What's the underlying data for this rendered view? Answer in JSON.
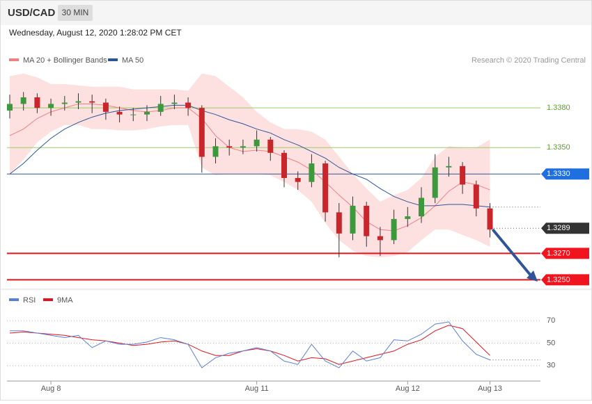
{
  "header": {
    "symbol": "USD/CAD",
    "timeframe": "30 MIN",
    "datetime": "Wednesday, August 12, 2020 1:28:02 PM CET"
  },
  "chart_data": {
    "type": "candlestick",
    "legend": {
      "bollinger": "MA 20 + Bollinger Bands",
      "ma50": "MA 50"
    },
    "credit": "Research © 2020 Trading Central",
    "categories": [
      null,
      null,
      null,
      "Aug 8",
      null,
      null,
      null,
      null,
      null,
      null,
      null,
      null,
      null,
      null,
      null,
      null,
      null,
      null,
      "Aug 11",
      null,
      null,
      null,
      null,
      null,
      null,
      null,
      null,
      null,
      null,
      "Aug 12",
      null,
      null,
      null,
      null,
      null,
      "Aug 13"
    ],
    "ohlc": [
      [
        1.3378,
        1.339,
        1.3372,
        1.3383
      ],
      [
        1.3383,
        1.3392,
        1.3378,
        1.3388
      ],
      [
        1.3388,
        1.3391,
        1.3376,
        1.338
      ],
      [
        1.338,
        1.3387,
        1.3374,
        1.3383
      ],
      [
        1.3383,
        1.3389,
        1.3378,
        1.3384
      ],
      [
        1.3384,
        1.3391,
        1.3379,
        1.3385
      ],
      [
        1.3385,
        1.339,
        1.3376,
        1.3384
      ],
      [
        1.3384,
        1.3387,
        1.3371,
        1.3377
      ],
      [
        1.3377,
        1.3381,
        1.3369,
        1.3375
      ],
      [
        1.3375,
        1.338,
        1.337,
        1.3375
      ],
      [
        1.3375,
        1.3382,
        1.337,
        1.3377
      ],
      [
        1.3377,
        1.3389,
        1.3374,
        1.3383
      ],
      [
        1.3383,
        1.339,
        1.3379,
        1.3384
      ],
      [
        1.3384,
        1.3388,
        1.3374,
        1.338
      ],
      [
        1.338,
        1.3382,
        1.3331,
        1.3343
      ],
      [
        1.3343,
        1.3357,
        1.3338,
        1.3351
      ],
      [
        1.3351,
        1.3356,
        1.3344,
        1.335
      ],
      [
        1.335,
        1.3356,
        1.3345,
        1.3351
      ],
      [
        1.3351,
        1.3363,
        1.3347,
        1.3356
      ],
      [
        1.3356,
        1.3358,
        1.334,
        1.3346
      ],
      [
        1.3346,
        1.3348,
        1.332,
        1.3327
      ],
      [
        1.3327,
        1.3332,
        1.3318,
        1.3324
      ],
      [
        1.3324,
        1.3345,
        1.332,
        1.3338
      ],
      [
        1.3338,
        1.334,
        1.3294,
        1.3301
      ],
      [
        1.3301,
        1.3308,
        1.3267,
        1.3285
      ],
      [
        1.3285,
        1.3313,
        1.328,
        1.3306
      ],
      [
        1.3306,
        1.3309,
        1.3275,
        1.3283
      ],
      [
        1.3283,
        1.329,
        1.3268,
        1.328
      ],
      [
        1.328,
        1.3303,
        1.3277,
        1.3296
      ],
      [
        1.3296,
        1.3305,
        1.329,
        1.3298
      ],
      [
        1.3298,
        1.332,
        1.3293,
        1.3312
      ],
      [
        1.3312,
        1.3345,
        1.3308,
        1.3335
      ],
      [
        1.3335,
        1.3343,
        1.3328,
        1.3336
      ],
      [
        1.3336,
        1.3339,
        1.3315,
        1.3322
      ],
      [
        1.3322,
        1.3325,
        1.3298,
        1.3304
      ],
      [
        1.3304,
        1.3308,
        1.3282,
        1.3288
      ]
    ],
    "up_color": "#3c9a3c",
    "down_color": "#c8262b",
    "ma20": [
      1.3359,
      1.3364,
      1.3372,
      1.3377,
      1.338,
      1.3383,
      1.3383,
      1.3382,
      1.338,
      1.3378,
      1.3377,
      1.3378,
      1.338,
      1.338,
      1.3372,
      1.3359,
      1.335,
      1.3347,
      1.3348,
      1.3347,
      1.3343,
      1.3339,
      1.3333,
      1.3324,
      1.3314,
      1.3305,
      1.3294,
      1.3288,
      1.3287,
      1.3291,
      1.3297,
      1.3306,
      1.3317,
      1.3324,
      1.3322,
      1.3318
    ],
    "ma50": [
      1.333,
      1.3338,
      1.3348,
      1.3357,
      1.3364,
      1.3369,
      1.3373,
      1.3376,
      1.3378,
      1.3379,
      1.338,
      1.3381,
      1.3382,
      1.3382,
      1.3378,
      1.3375,
      1.3371,
      1.3368,
      1.3364,
      1.3361,
      1.3356,
      1.3352,
      1.3347,
      1.3342,
      1.3335,
      1.333,
      1.3326,
      1.3319,
      1.3313,
      1.3309,
      1.3306,
      1.3306,
      1.3307,
      1.3307,
      1.3306,
      1.3305
    ],
    "bb_upper": [
      1.3404,
      1.3406,
      1.3403,
      1.3398,
      1.3398,
      1.3397,
      1.3396,
      1.3396,
      1.3396,
      1.3394,
      1.3394,
      1.3394,
      1.3394,
      1.3393,
      1.3406,
      1.3404,
      1.3396,
      1.3388,
      1.3377,
      1.3369,
      1.3364,
      1.3364,
      1.3362,
      1.3356,
      1.3343,
      1.333,
      1.3319,
      1.3309,
      1.3314,
      1.3318,
      1.3327,
      1.3343,
      1.3351,
      1.335,
      1.335,
      1.3356
    ],
    "bb_lower": [
      1.333,
      1.3341,
      1.3354,
      1.3362,
      1.3367,
      1.3367,
      1.3364,
      1.3364,
      1.3363,
      1.3363,
      1.3364,
      1.3366,
      1.3367,
      1.3367,
      1.3335,
      1.3329,
      1.333,
      1.333,
      1.333,
      1.3329,
      1.3324,
      1.3318,
      1.3309,
      1.3293,
      1.328,
      1.3272,
      1.3268,
      1.3267,
      1.3268,
      1.3271,
      1.328,
      1.3288,
      1.3288,
      1.3284,
      1.328,
      1.3275
    ],
    "ma20_color": "#f08080",
    "ma50_color": "#2f5597",
    "band_color": "#fde0e0",
    "ylim": [
      1.3246,
      1.3409
    ],
    "levels": [
      {
        "value": 1.338,
        "label": "1.3380",
        "color": "#9acd66",
        "text_color": "#5aa02c"
      },
      {
        "value": 1.335,
        "label": "1.3350",
        "color": "#9acd66",
        "text_color": "#5aa02c"
      },
      {
        "value": 1.333,
        "label": "1.3330",
        "color": "#2f5597",
        "tag": "#1f6fe0"
      },
      {
        "value": 1.3289,
        "label": "1.3289",
        "tag": "#333333"
      },
      {
        "value": 1.327,
        "label": "1.3270",
        "color": "#e0141e",
        "tag": "#f0141e"
      },
      {
        "value": 1.325,
        "label": "1.3250",
        "color": "#e0141e",
        "tag": "#f0141e"
      }
    ],
    "rsi": {
      "legend": "RSI",
      "ma_legend": "9MA",
      "color": "#5b7fd6",
      "ma_color": "#e0141e",
      "values": [
        61,
        61,
        59,
        57,
        55,
        57,
        46,
        52,
        49,
        49,
        51,
        55,
        53,
        49,
        28,
        37,
        41,
        43,
        46,
        43,
        34,
        31,
        49,
        34,
        28,
        43,
        34,
        37,
        53,
        52,
        58,
        67,
        69,
        52,
        40,
        35
      ],
      "ma": [
        59,
        60,
        59,
        58,
        57,
        55,
        53,
        52,
        50,
        48,
        49,
        51,
        52,
        49,
        43,
        39,
        39,
        43,
        45,
        43,
        39,
        34,
        37,
        36,
        31,
        34,
        37,
        40,
        43,
        49,
        53,
        61,
        66,
        63,
        51,
        39
      ],
      "ylim": [
        18,
        82
      ],
      "yticks": [
        70,
        50,
        30
      ]
    }
  }
}
